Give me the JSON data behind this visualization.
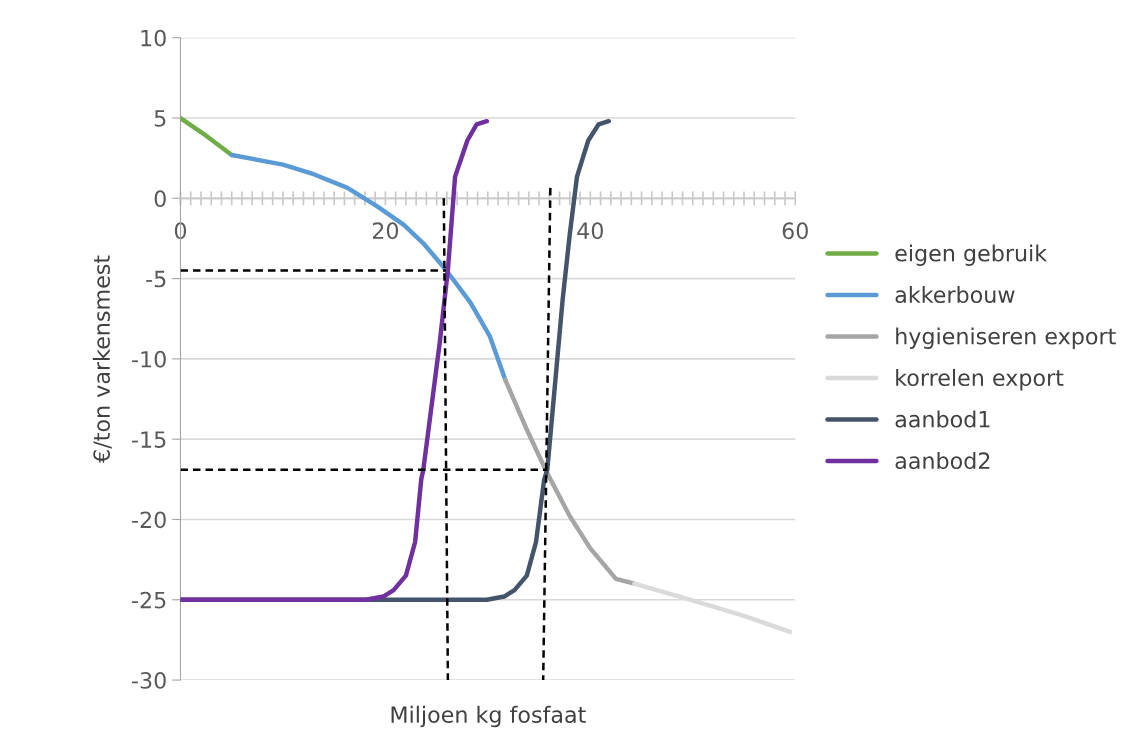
{
  "chart_data": {
    "type": "line",
    "xlabel": "Miljoen kg fosfaat",
    "ylabel": "€/ton varkensmest",
    "xlim": [
      0,
      60
    ],
    "ylim": [
      -30,
      10
    ],
    "yticks": [
      -30,
      -25,
      -20,
      -15,
      -10,
      -5,
      0,
      5,
      10
    ],
    "xticks": [
      0,
      {
        "value": 1,
        "label": null
      },
      {
        "value": 2,
        "label": null
      },
      {
        "value": 3,
        "label": null
      },
      {
        "value": 4,
        "label": null
      },
      {
        "value": 5,
        "label": null
      },
      {
        "value": 6,
        "label": null
      },
      {
        "value": 7,
        "label": null
      },
      {
        "value": 8,
        "label": null
      },
      {
        "value": 9,
        "label": null
      },
      {
        "value": 10,
        "label": null
      },
      {
        "value": 11,
        "label": null
      },
      {
        "value": 12,
        "label": null
      },
      {
        "value": 13,
        "label": null
      },
      {
        "value": 14,
        "label": null
      },
      {
        "value": 15,
        "label": null
      },
      {
        "value": 16,
        "label": null
      },
      {
        "value": 17,
        "label": null
      },
      {
        "value": 18,
        "label": null
      },
      {
        "value": 19,
        "label": null
      },
      20,
      {
        "value": 21,
        "label": null
      },
      {
        "value": 22,
        "label": null
      },
      {
        "value": 23,
        "label": null
      },
      {
        "value": 24,
        "label": null
      },
      {
        "value": 25,
        "label": null
      },
      {
        "value": 26,
        "label": null
      },
      {
        "value": 27,
        "label": null
      },
      {
        "value": 28,
        "label": null
      },
      {
        "value": 29,
        "label": null
      },
      {
        "value": 30,
        "label": null
      },
      {
        "value": 31,
        "label": null
      },
      {
        "value": 32,
        "label": null
      },
      {
        "value": 33,
        "label": null
      },
      {
        "value": 34,
        "label": null
      },
      {
        "value": 35,
        "label": null
      },
      {
        "value": 36,
        "label": null
      },
      {
        "value": 37,
        "label": null
      },
      {
        "value": 38,
        "label": null
      },
      {
        "value": 39,
        "label": null
      },
      40,
      {
        "value": 41,
        "label": null
      },
      {
        "value": 42,
        "label": null
      },
      {
        "value": 43,
        "label": null
      },
      {
        "value": 44,
        "label": null
      },
      {
        "value": 45,
        "label": null
      },
      {
        "value": 46,
        "label": null
      },
      {
        "value": 47,
        "label": null
      },
      {
        "value": 48,
        "label": null
      },
      {
        "value": 49,
        "label": null
      },
      {
        "value": 50,
        "label": null
      },
      {
        "value": 51,
        "label": null
      },
      {
        "value": 52,
        "label": null
      },
      {
        "value": 53,
        "label": null
      },
      {
        "value": 54,
        "label": null
      },
      {
        "value": 55,
        "label": null
      },
      {
        "value": 56,
        "label": null
      },
      {
        "value": 57,
        "label": null
      },
      {
        "value": 58,
        "label": null
      },
      {
        "value": 59,
        "label": null
      },
      60
    ],
    "grid": "y",
    "legend": "right",
    "marker": "none",
    "line_style": "solid",
    "series": [
      {
        "name": "eigen gebruik",
        "color": "#70ad47",
        "x": [
          0,
          2.5,
          5
        ],
        "values": [
          5,
          3.9,
          2.7
        ]
      },
      {
        "name": "akkerbouw",
        "color": "#5b9bd5",
        "x": [
          5,
          10,
          13,
          16.3,
          19.2,
          21.8,
          23.7,
          25.9,
          28.3,
          30.2,
          31.7
        ],
        "values": [
          2.7,
          2.1,
          1.5,
          0.65,
          -0.5,
          -1.65,
          -2.8,
          -4.45,
          -6.5,
          -8.6,
          -11.3
        ]
      },
      {
        "name": "hygieniseren export",
        "color": "#a5a5a5",
        "x": [
          31.7,
          33.8,
          35.7,
          38,
          40,
          42.5,
          44.3
        ],
        "values": [
          -11.3,
          -14.4,
          -17,
          -19.8,
          -21.8,
          -23.7,
          -24
        ]
      },
      {
        "name": "korrelen export",
        "color": "#dadada",
        "x": [
          44.3,
          49.8,
          55,
          59.5
        ],
        "values": [
          -24,
          -25,
          -26,
          -27
        ]
      },
      {
        "name": "aanbod1",
        "color": "#44546a",
        "x": [
          0,
          29.9,
          31.6,
          32.6,
          33.8,
          34.7,
          35.5,
          35.8,
          37.3,
          38,
          38.7,
          39.8,
          40.8,
          41.8
        ],
        "values": [
          -25,
          -25,
          -24.8,
          -24.4,
          -23.5,
          -21.4,
          -17.5,
          -16.9,
          -6.3,
          -2.2,
          1.35,
          3.6,
          4.6,
          4.8
        ]
      },
      {
        "name": "aanbod2",
        "color": "#7030a0",
        "x": [
          0,
          18.1,
          19.8,
          20.8,
          22,
          22.9,
          23.5,
          23.7,
          25.3,
          26.1,
          26.8,
          28,
          28.9,
          29.9
        ],
        "values": [
          -25,
          -25,
          -24.8,
          -24.4,
          -23.5,
          -21.4,
          -17.5,
          -16.9,
          -9,
          -4.45,
          1.35,
          3.6,
          4.6,
          4.8
        ]
      },
      {
        "color": "#000000",
        "line_style": "dashed",
        "x": [
          0,
          25.9
        ],
        "values": [
          -4.5,
          -4.5
        ]
      },
      {
        "color": "#000000",
        "line_style": "dashed",
        "x": [
          25.7,
          26.1
        ],
        "values": [
          0,
          -30
        ]
      },
      {
        "color": "#000000",
        "line_style": "dashed",
        "x": [
          0,
          35.8
        ],
        "values": [
          -16.9,
          -16.9
        ]
      },
      {
        "color": "#000000",
        "line_style": "dashed",
        "x": [
          36.1,
          35.4
        ],
        "values": [
          0.65,
          -30
        ]
      }
    ]
  }
}
